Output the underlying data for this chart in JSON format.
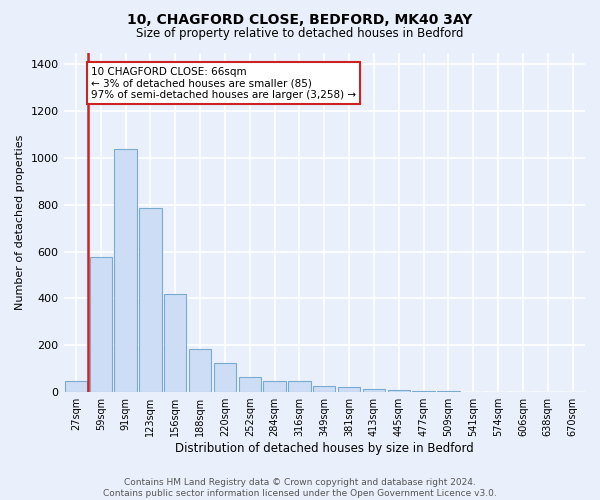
{
  "title1": "10, CHAGFORD CLOSE, BEDFORD, MK40 3AY",
  "title2": "Size of property relative to detached houses in Bedford",
  "xlabel": "Distribution of detached houses by size in Bedford",
  "ylabel": "Number of detached properties",
  "categories": [
    "27sqm",
    "59sqm",
    "91sqm",
    "123sqm",
    "156sqm",
    "188sqm",
    "220sqm",
    "252sqm",
    "284sqm",
    "316sqm",
    "349sqm",
    "381sqm",
    "413sqm",
    "445sqm",
    "477sqm",
    "509sqm",
    "541sqm",
    "574sqm",
    "606sqm",
    "638sqm",
    "670sqm"
  ],
  "values": [
    47,
    575,
    1040,
    785,
    420,
    185,
    125,
    65,
    47,
    47,
    25,
    22,
    15,
    10,
    5,
    3,
    2,
    1,
    1,
    1,
    1
  ],
  "bar_color": "#ccddf5",
  "bar_edge_color": "#7aaad0",
  "highlight_edge_color": "#cc2222",
  "annotation_text": "10 CHAGFORD CLOSE: 66sqm\n← 3% of detached houses are smaller (85)\n97% of semi-detached houses are larger (3,258) →",
  "annotation_box_color": "#ffffff",
  "annotation_box_edge": "#cc2222",
  "vline_x": 0.5,
  "ylim": [
    0,
    1450
  ],
  "yticks": [
    0,
    200,
    400,
    600,
    800,
    1000,
    1200,
    1400
  ],
  "bg_color": "#eaf0fb",
  "grid_color": "#ffffff",
  "footer": "Contains HM Land Registry data © Crown copyright and database right 2024.\nContains public sector information licensed under the Open Government Licence v3.0."
}
